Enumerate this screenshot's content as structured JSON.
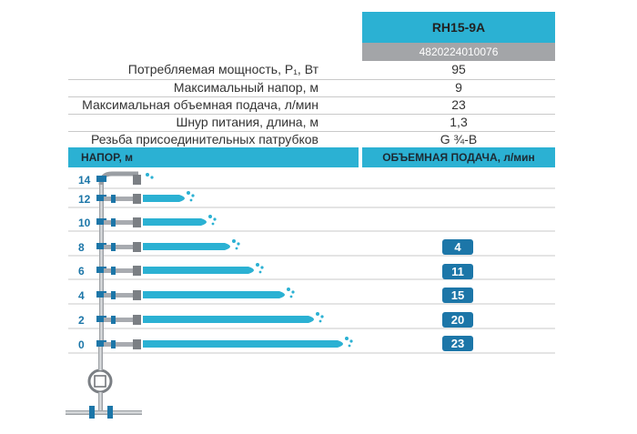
{
  "product": {
    "model": "RH15-9A",
    "barcode": "4820224010076"
  },
  "specs": [
    {
      "label": "Потребляемая мощность, P₁, Вт",
      "value": "95"
    },
    {
      "label": "Максимальный напор, м",
      "value": "9"
    },
    {
      "label": "Максимальная объемная подача, л/мин",
      "value": "23"
    },
    {
      "label": "Шнур питания, длина, м",
      "value": "1,3"
    },
    {
      "label": "Резьба присоединительных патрубков",
      "value": "G ¾-B"
    }
  ],
  "table_headers": {
    "head_left": "НАПОР, м",
    "head_right": "ОБЪЕМНАЯ ПОДАЧА, л/мин"
  },
  "flow_rows": [
    {
      "head_m": "14",
      "flow": ""
    },
    {
      "head_m": "12",
      "flow": ""
    },
    {
      "head_m": "10",
      "flow": ""
    },
    {
      "head_m": "8",
      "flow": "4"
    },
    {
      "head_m": "6",
      "flow": "11"
    },
    {
      "head_m": "4",
      "flow": "15"
    },
    {
      "head_m": "2",
      "flow": "20"
    },
    {
      "head_m": "0",
      "flow": "23"
    }
  ],
  "colors": {
    "accent": "#2bb1d3",
    "badge": "#1c76a8",
    "label_blue": "#1c76a8",
    "gray_header": "#a3a5a8"
  }
}
